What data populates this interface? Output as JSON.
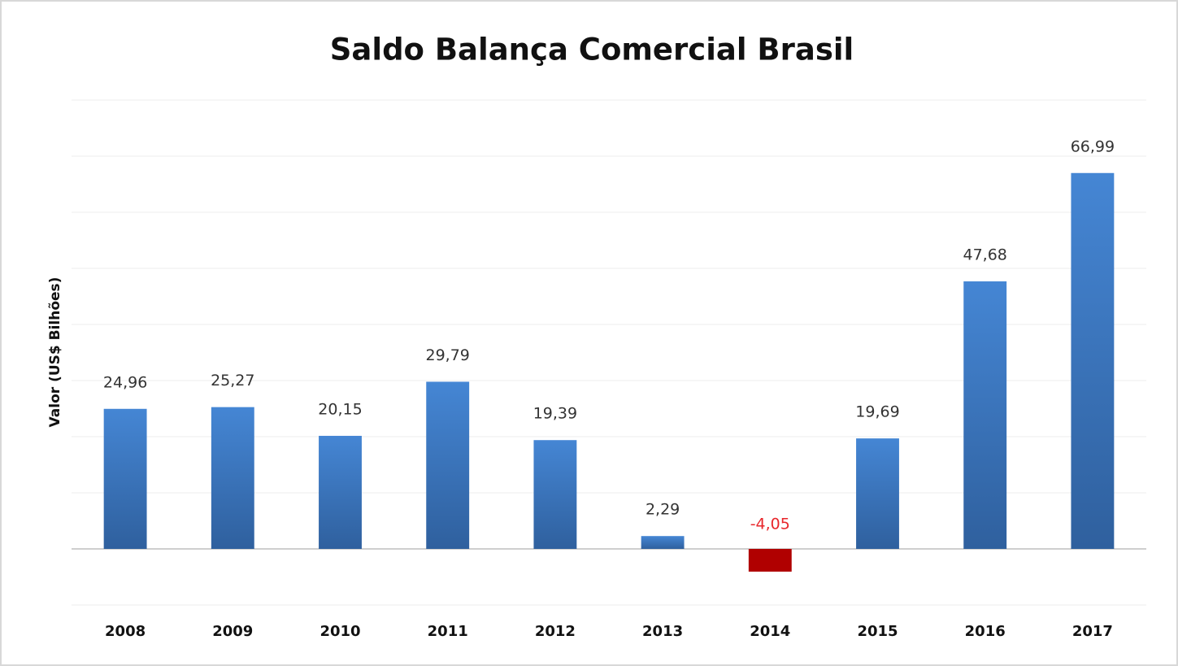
{
  "chart_data": {
    "type": "bar",
    "title": "Saldo Balança Comercial Brasil",
    "y_label": "Valor (US$ Bilhões)",
    "categories": [
      "2008",
      "2009",
      "2010",
      "2011",
      "2012",
      "2013",
      "2014",
      "2015",
      "2016",
      "2017"
    ],
    "values": [
      24.96,
      25.27,
      20.15,
      29.79,
      19.39,
      2.29,
      -4.05,
      19.69,
      47.68,
      66.99
    ],
    "value_labels": [
      "24,96",
      "25,27",
      "20,15",
      "29,79",
      "19,39",
      "2,29",
      "-4,05",
      "19,69",
      "47,68",
      "66,99"
    ],
    "color": "#3f7cc8",
    "negative_color": "#b00000",
    "negative_label_color": "#e8262b",
    "ylim": [
      -10,
      80
    ],
    "yticks": [
      -10,
      0,
      10,
      20,
      30,
      40,
      50,
      60,
      70,
      80
    ],
    "grid": true
  }
}
